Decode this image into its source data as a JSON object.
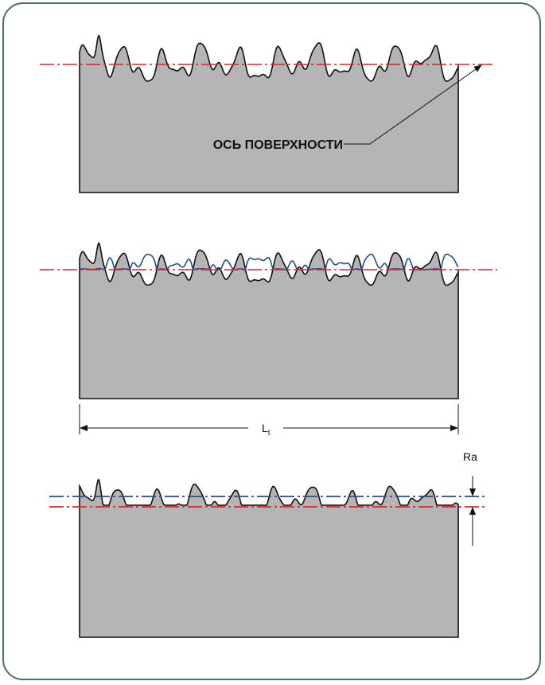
{
  "surface_axis_label": "ОСЬ ПОВЕРХНОСТИ",
  "length_label": {
    "main": "L",
    "subscript": "t"
  },
  "ra_label": "Ra",
  "colors": {
    "frame": "#4f6e62",
    "block_fill": "#b5b5b5",
    "outline": "#111111",
    "axis_red": "#e0202a",
    "axis_blue": "#1f4f9a",
    "mirror_blue": "#1f4f9a"
  }
}
